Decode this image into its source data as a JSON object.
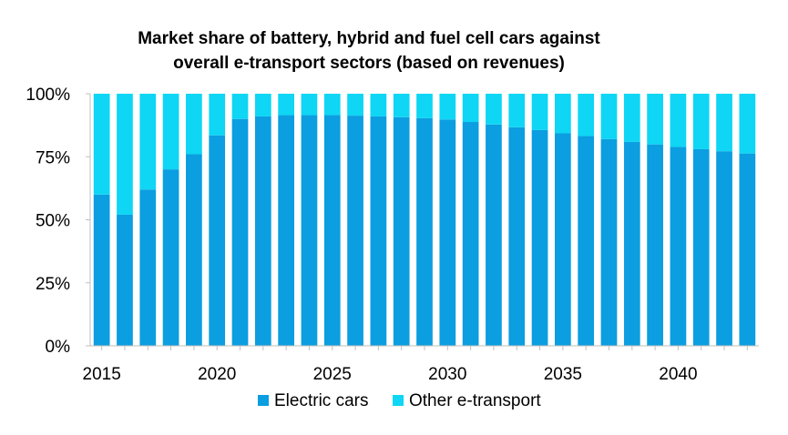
{
  "chart_data": {
    "type": "bar",
    "stacked": true,
    "title_lines": [
      "Market share of battery, hybrid and fuel cell cars against",
      "overall e-transport sectors (based on revenues)"
    ],
    "x": [
      2015,
      2016,
      2017,
      2018,
      2019,
      2020,
      2021,
      2022,
      2023,
      2024,
      2025,
      2026,
      2027,
      2028,
      2029,
      2030,
      2031,
      2032,
      2033,
      2034,
      2035,
      2036,
      2037,
      2038,
      2039,
      2040,
      2041,
      2042,
      2043
    ],
    "x_tick_labels": [
      "2015",
      "2020",
      "2025",
      "2030",
      "2035",
      "2040"
    ],
    "series": [
      {
        "name": "Electric cars",
        "color": "#0b9ee0",
        "values": [
          60,
          52,
          62,
          70,
          76,
          83.5,
          90,
          91,
          91.5,
          91.5,
          91.5,
          91.3,
          91,
          90.7,
          90.3,
          89.8,
          88.8,
          87.8,
          86.7,
          85.6,
          84.3,
          83.2,
          82,
          80.9,
          79.9,
          78.9,
          78,
          77.2,
          76.3
        ]
      },
      {
        "name": "Other e-transport",
        "color": "#0ed6f4",
        "values": [
          40,
          48,
          38,
          30,
          24,
          16.5,
          10,
          9,
          8.5,
          8.5,
          8.5,
          8.7,
          9,
          9.3,
          9.7,
          10.2,
          11.2,
          12.2,
          13.3,
          14.4,
          15.7,
          16.8,
          18,
          19.1,
          20.1,
          21.1,
          22,
          22.8,
          23.7
        ]
      }
    ],
    "y_tick_labels": [
      "0%",
      "25%",
      "50%",
      "75%",
      "100%"
    ],
    "y_ticks": [
      0,
      25,
      50,
      75,
      100
    ],
    "ylim": [
      0,
      100
    ],
    "xlabel": "",
    "ylabel": "",
    "legend_position": "bottom"
  }
}
